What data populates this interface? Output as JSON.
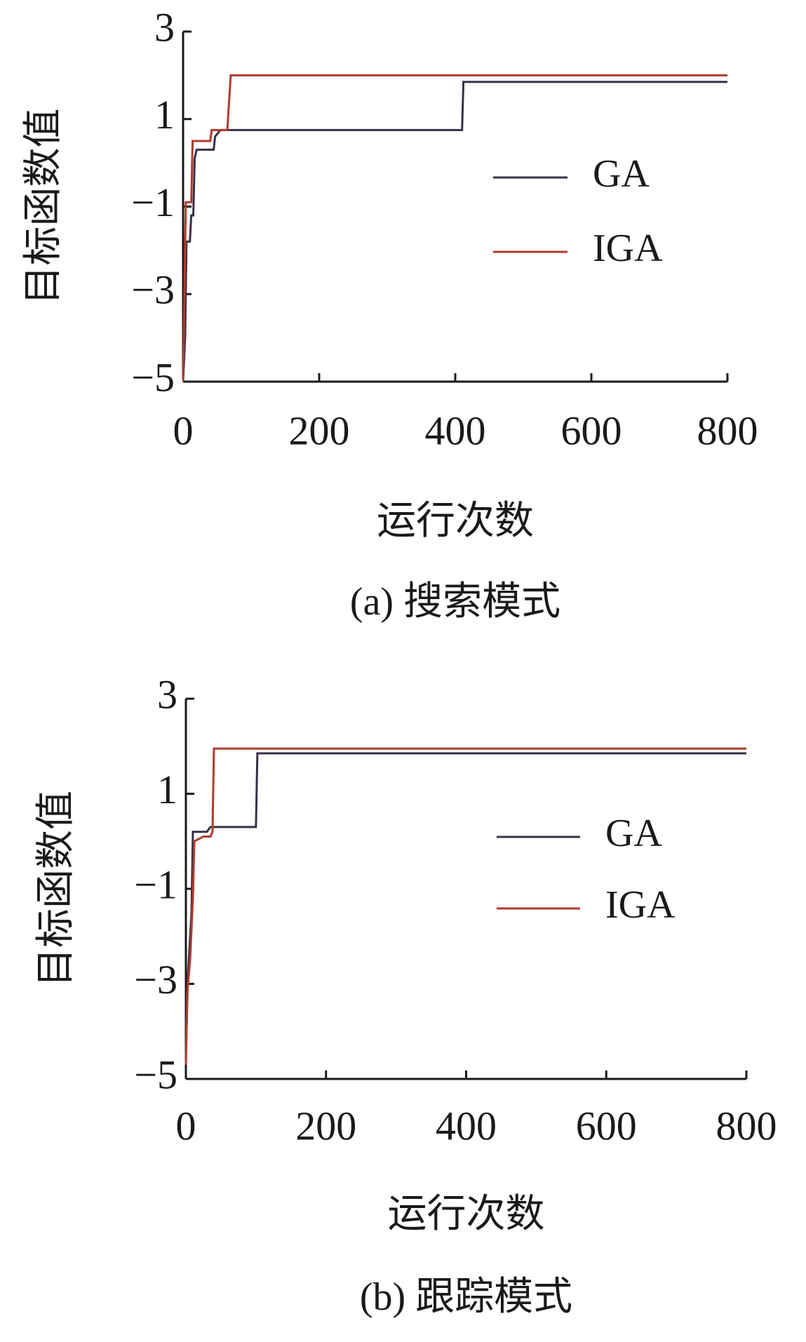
{
  "chart_data": [
    {
      "type": "line",
      "xlabel": "运行次数",
      "ylabel": "目标函数值",
      "caption": "(a) 搜索模式",
      "xlim": [
        0,
        800
      ],
      "xticks": [
        0,
        200,
        400,
        600,
        800
      ],
      "ylim": [
        -5,
        3
      ],
      "yticks": [
        {
          "value": -5,
          "label": "−5"
        },
        {
          "value": -3,
          "label": "−3"
        },
        {
          "value": -1,
          "label": "−1"
        },
        1,
        3
      ],
      "series": [
        {
          "name": "GA",
          "color": "#3a2f45",
          "x": [
            0,
            3,
            5,
            10,
            12,
            15,
            17,
            20,
            45,
            47,
            55,
            410,
            412,
            800
          ],
          "values": [
            -5,
            -4,
            -1.8,
            -1.8,
            -1.2,
            -1.2,
            0.1,
            0.3,
            0.3,
            0.6,
            0.75,
            0.75,
            1.85,
            1.85
          ]
        },
        {
          "name": "IGA",
          "color": "#b03a2e",
          "x": [
            0,
            2,
            4,
            12,
            14,
            40,
            42,
            65,
            70,
            800
          ],
          "values": [
            -5,
            -3,
            -0.9,
            -0.9,
            0.5,
            0.5,
            0.75,
            0.75,
            2.0,
            2.0
          ]
        }
      ]
    },
    {
      "type": "line",
      "xlabel": "运行次数",
      "ylabel": "目标函数值",
      "caption": "(b) 跟踪模式",
      "xlim": [
        0,
        800
      ],
      "xticks": [
        0,
        200,
        400,
        600,
        800
      ],
      "ylim": [
        -5,
        3
      ],
      "yticks": [
        {
          "value": -5,
          "label": "−5"
        },
        {
          "value": -3,
          "label": "−3"
        },
        {
          "value": -1,
          "label": "−1"
        },
        1,
        3
      ],
      "series": [
        {
          "name": "GA",
          "color": "#3a2f45",
          "x": [
            0,
            3,
            8,
            10,
            30,
            35,
            100,
            102,
            800
          ],
          "values": [
            -4.5,
            -2.8,
            -1.5,
            0.2,
            0.2,
            0.3,
            0.3,
            1.85,
            1.85
          ]
        },
        {
          "name": "IGA",
          "color": "#b03a2e",
          "x": [
            0,
            2,
            6,
            10,
            12,
            25,
            35,
            38,
            40,
            800
          ],
          "values": [
            -4.7,
            -3.2,
            -2.5,
            -1.2,
            0,
            0.1,
            0.1,
            0.2,
            1.95,
            1.95
          ]
        }
      ]
    }
  ]
}
